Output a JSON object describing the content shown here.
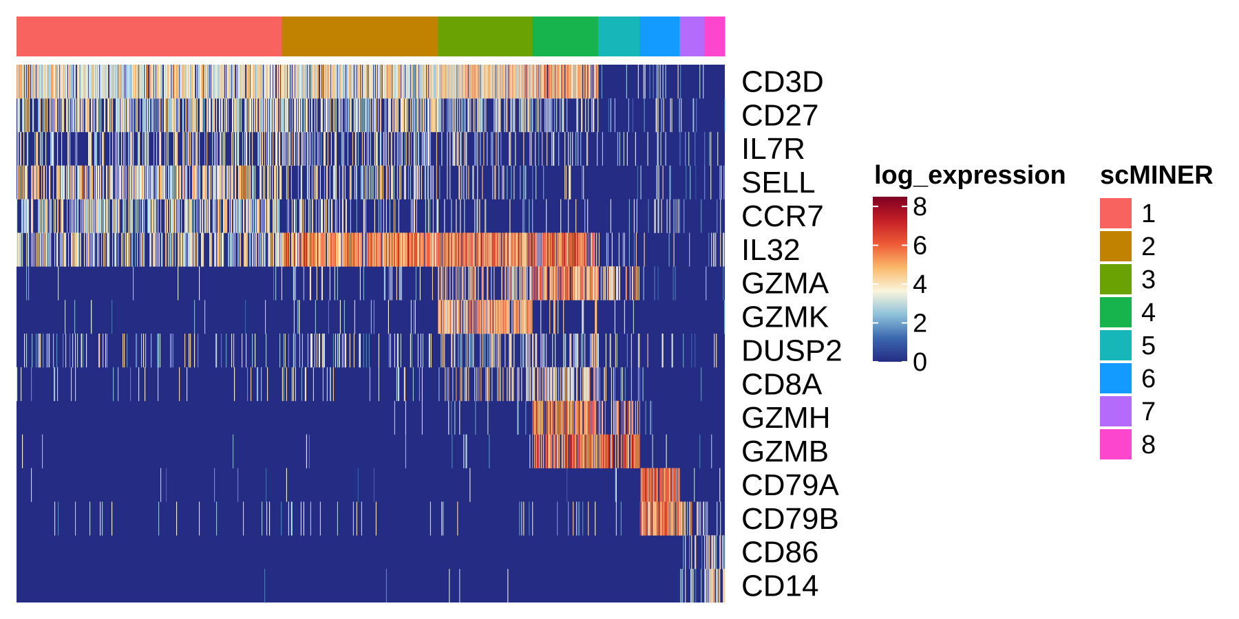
{
  "chart_data": {
    "type": "heatmap",
    "title": "",
    "xlabel": "",
    "ylabel": "",
    "genes": [
      "CD3D",
      "CD27",
      "IL7R",
      "SELL",
      "CCR7",
      "IL32",
      "GZMA",
      "GZMK",
      "DUSP2",
      "CD8A",
      "GZMH",
      "GZMB",
      "CD79A",
      "CD79B",
      "CD86",
      "CD14"
    ],
    "color_legend": {
      "title": "log_expression",
      "ticks": [
        "8",
        "6",
        "4",
        "2",
        "0"
      ],
      "tick_values": [
        8,
        6,
        4,
        2,
        0
      ],
      "range": [
        0,
        8.5
      ],
      "colors": [
        "#252C84",
        "#3B67AE",
        "#8EC1DA",
        "#FAF5DC",
        "#FBB86A",
        "#EE5B36",
        "#C41F26",
        "#7F0023"
      ]
    },
    "cluster_legend": {
      "title": "scMINER",
      "labels": [
        "1",
        "2",
        "3",
        "4",
        "5",
        "6",
        "7",
        "8"
      ]
    },
    "clusters": [
      {
        "name": "1",
        "color": "#F8635F",
        "fraction": 0.374
      },
      {
        "name": "2",
        "color": "#C18202",
        "fraction": 0.221
      },
      {
        "name": "3",
        "color": "#6BA203",
        "fraction": 0.133
      },
      {
        "name": "4",
        "color": "#17B44E",
        "fraction": 0.093
      },
      {
        "name": "5",
        "color": "#17B6B9",
        "fraction": 0.059
      },
      {
        "name": "6",
        "color": "#149BFF",
        "fraction": 0.056
      },
      {
        "name": "7",
        "color": "#B46AFB",
        "fraction": 0.035
      },
      {
        "name": "8",
        "color": "#FC46CE",
        "fraction": 0.029
      }
    ],
    "expression_probability": {
      "CD3D": [
        0.85,
        0.85,
        0.9,
        0.9,
        0.1,
        0.2,
        0.05,
        0.05
      ],
      "CD27": [
        0.6,
        0.6,
        0.5,
        0.35,
        0.05,
        0.15,
        0.1,
        0.05
      ],
      "IL7R": [
        0.3,
        0.4,
        0.25,
        0.15,
        0.05,
        0.1,
        0.05,
        0.05
      ],
      "SELL": [
        0.6,
        0.3,
        0.15,
        0.1,
        0.05,
        0.1,
        0.05,
        0.1
      ],
      "CCR7": [
        0.55,
        0.35,
        0.15,
        0.1,
        0.05,
        0.15,
        0.05,
        0.05
      ],
      "IL32": [
        0.5,
        0.9,
        0.9,
        0.85,
        0.1,
        0.1,
        0.05,
        0.15
      ],
      "GZMA": [
        0.02,
        0.1,
        0.45,
        0.85,
        0.5,
        0.05,
        0.05,
        0.05
      ],
      "GZMK": [
        0.02,
        0.05,
        0.85,
        0.2,
        0.05,
        0.02,
        0.02,
        0.02
      ],
      "DUSP2": [
        0.15,
        0.25,
        0.35,
        0.3,
        0.15,
        0.1,
        0.05,
        0.1
      ],
      "CD8A": [
        0.05,
        0.08,
        0.25,
        0.55,
        0.15,
        0.02,
        0.02,
        0.02
      ],
      "GZMH": [
        0.01,
        0.01,
        0.05,
        0.75,
        0.45,
        0.02,
        0.02,
        0.02
      ],
      "GZMB": [
        0.01,
        0.02,
        0.05,
        0.8,
        0.7,
        0.05,
        0.05,
        0.1
      ],
      "CD79A": [
        0.02,
        0.02,
        0.02,
        0.02,
        0.02,
        0.85,
        0.02,
        0.02
      ],
      "CD79B": [
        0.05,
        0.05,
        0.05,
        0.05,
        0.05,
        0.8,
        0.3,
        0.3
      ],
      "CD86": [
        0.0,
        0.0,
        0.0,
        0.0,
        0.0,
        0.0,
        0.15,
        0.35
      ],
      "CD14": [
        0.002,
        0.002,
        0.002,
        0.0,
        0.0,
        0.0,
        0.25,
        0.6
      ]
    },
    "mean_expression_when_on": {
      "CD3D": [
        3.8,
        3.8,
        4.2,
        4.8,
        2.5,
        3.0,
        2.0,
        2.0
      ],
      "CD27": [
        3.6,
        3.4,
        3.2,
        3.0,
        2.5,
        3.0,
        2.0,
        2.0
      ],
      "IL7R": [
        3.6,
        3.6,
        3.4,
        3.2,
        2.5,
        3.0,
        2.0,
        2.0
      ],
      "SELL": [
        3.8,
        3.5,
        3.2,
        3.0,
        2.5,
        3.0,
        2.0,
        3.0
      ],
      "CCR7": [
        3.6,
        3.4,
        3.0,
        3.0,
        2.5,
        3.0,
        2.0,
        2.0
      ],
      "IL32": [
        3.5,
        5.2,
        5.5,
        5.4,
        3.0,
        3.0,
        2.0,
        3.0
      ],
      "GZMA": [
        2.5,
        3.5,
        4.5,
        5.2,
        4.5,
        2.0,
        2.0,
        2.0
      ],
      "GZMK": [
        2.5,
        3.0,
        5.0,
        4.0,
        3.0,
        2.0,
        2.0,
        2.0
      ],
      "DUSP2": [
        3.0,
        3.0,
        3.5,
        3.5,
        3.0,
        3.0,
        2.0,
        3.0
      ],
      "CD8A": [
        3.0,
        3.0,
        3.8,
        4.2,
        3.0,
        2.0,
        2.0,
        2.0
      ],
      "GZMH": [
        2.5,
        2.5,
        3.0,
        5.5,
        4.8,
        2.0,
        2.0,
        2.0
      ],
      "GZMB": [
        2.5,
        3.0,
        3.0,
        5.8,
        5.5,
        3.0,
        3.0,
        3.5
      ],
      "CD79A": [
        2.5,
        2.5,
        2.5,
        2.5,
        2.5,
        5.8,
        2.5,
        2.5
      ],
      "CD79B": [
        3.0,
        3.0,
        3.0,
        3.0,
        3.0,
        5.5,
        4.0,
        4.0
      ],
      "CD86": [
        0,
        0,
        0,
        0,
        0,
        0,
        3.0,
        3.5
      ],
      "CD14": [
        2.5,
        2.5,
        2.5,
        0,
        0,
        0,
        3.0,
        4.0
      ]
    }
  }
}
